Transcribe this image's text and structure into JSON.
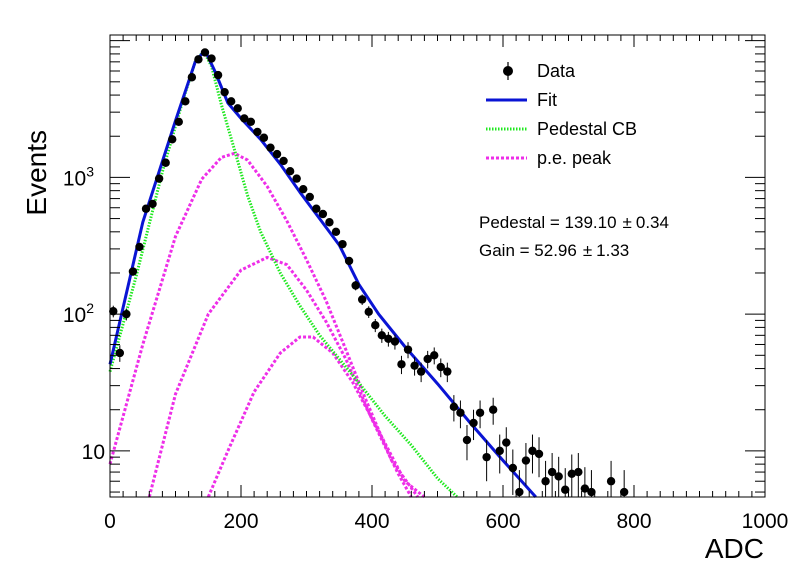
{
  "chart_data": {
    "type": "scatter",
    "xlabel": "ADC",
    "ylabel": "Events",
    "xlim": [
      0,
      1000
    ],
    "ylim": [
      4.6,
      11000
    ],
    "yscale": "log",
    "grid": false,
    "legend_placement": "top-right",
    "x_ticks": [
      {
        "value": 0,
        "label": "0"
      },
      {
        "value": 200,
        "label": "200"
      },
      {
        "value": 400,
        "label": "400"
      },
      {
        "value": 600,
        "label": "600"
      },
      {
        "value": 800,
        "label": "800"
      },
      {
        "value": 1000,
        "label": "1000"
      }
    ],
    "y_ticks": [
      {
        "value": 10,
        "base": "10",
        "exp": ""
      },
      {
        "value": 100,
        "base": "10",
        "exp": "2"
      },
      {
        "value": 1000,
        "base": "10",
        "exp": "3"
      }
    ],
    "legend": [
      {
        "label": "Data",
        "kind": "marker"
      },
      {
        "label": "Fit",
        "kind": "line-blue"
      },
      {
        "label": "Pedestal CB",
        "kind": "dotted-green"
      },
      {
        "label": "p.e. peak",
        "kind": "dotted-magenta"
      }
    ],
    "annotations": {
      "pedestal": "Pedestal = 139.10",
      "pedestal_err": "0.34",
      "gain": "Gain = 52.96",
      "gain_err": "1.33"
    },
    "pm_symbol": "±",
    "colors": {
      "data": "#000000",
      "fit": "#0a14d4",
      "pedestal": "#1ee81e",
      "pe_peak": "#ee2ee8"
    },
    "series": [
      {
        "name": "Data",
        "points": [
          [
            5,
            105
          ],
          [
            15,
            52
          ],
          [
            25,
            100
          ],
          [
            35,
            205
          ],
          [
            45,
            310
          ],
          [
            55,
            590
          ],
          [
            65,
            640
          ],
          [
            75,
            980
          ],
          [
            85,
            1280
          ],
          [
            95,
            1900
          ],
          [
            105,
            2550
          ],
          [
            115,
            3600
          ],
          [
            125,
            5400
          ],
          [
            135,
            7300
          ],
          [
            145,
            8200
          ],
          [
            155,
            7400
          ],
          [
            165,
            5600
          ],
          [
            175,
            4200
          ],
          [
            185,
            3600
          ],
          [
            195,
            3200
          ],
          [
            205,
            2700
          ],
          [
            215,
            2550
          ],
          [
            225,
            2150
          ],
          [
            235,
            1950
          ],
          [
            245,
            1650
          ],
          [
            255,
            1480
          ],
          [
            265,
            1320
          ],
          [
            275,
            1110
          ],
          [
            285,
            980
          ],
          [
            295,
            820
          ],
          [
            305,
            720
          ],
          [
            315,
            590
          ],
          [
            325,
            540
          ],
          [
            335,
            470
          ],
          [
            345,
            400
          ],
          [
            355,
            325
          ],
          [
            365,
            245
          ],
          [
            375,
            162
          ],
          [
            385,
            128
          ],
          [
            395,
            104
          ],
          [
            405,
            83
          ],
          [
            415,
            70
          ],
          [
            425,
            66
          ],
          [
            435,
            63
          ],
          [
            445,
            43
          ],
          [
            455,
            55
          ],
          [
            465,
            42
          ],
          [
            475,
            38
          ],
          [
            485,
            47
          ],
          [
            495,
            50
          ],
          [
            505,
            41
          ],
          [
            515,
            38
          ],
          [
            525,
            21
          ],
          [
            535,
            19
          ],
          [
            545,
            12
          ],
          [
            555,
            16
          ],
          [
            565,
            19
          ],
          [
            575,
            9
          ],
          [
            585,
            20
          ],
          [
            595,
            10
          ],
          [
            605,
            11.5
          ],
          [
            615,
            7.5
          ],
          [
            625,
            5
          ],
          [
            635,
            8.5
          ],
          [
            645,
            10
          ],
          [
            655,
            9.5
          ],
          [
            665,
            6
          ],
          [
            675,
            7
          ],
          [
            685,
            6.5
          ],
          [
            695,
            5.2
          ],
          [
            705,
            6.8
          ],
          [
            715,
            7
          ],
          [
            725,
            5.3
          ],
          [
            735,
            5
          ],
          [
            765,
            6
          ],
          [
            785,
            5
          ]
        ]
      },
      {
        "name": "Fit",
        "points": [
          [
            0,
            43
          ],
          [
            50,
            470
          ],
          [
            100,
            2600
          ],
          [
            130,
            7000
          ],
          [
            145,
            8500
          ],
          [
            160,
            6000
          ],
          [
            180,
            3500
          ],
          [
            200,
            2700
          ],
          [
            230,
            1900
          ],
          [
            260,
            1250
          ],
          [
            290,
            780
          ],
          [
            320,
            500
          ],
          [
            350,
            320
          ],
          [
            380,
            165
          ],
          [
            410,
            100
          ],
          [
            450,
            58
          ],
          [
            500,
            31
          ],
          [
            550,
            16
          ],
          [
            600,
            8.5
          ],
          [
            650,
            4.6
          ]
        ]
      },
      {
        "name": "Pedestal CB",
        "points": [
          [
            0,
            38
          ],
          [
            40,
            190
          ],
          [
            80,
            1100
          ],
          [
            110,
            3500
          ],
          [
            130,
            7000
          ],
          [
            143,
            8400
          ],
          [
            155,
            6500
          ],
          [
            170,
            3400
          ],
          [
            190,
            1600
          ],
          [
            210,
            740
          ],
          [
            230,
            400
          ],
          [
            260,
            200
          ],
          [
            290,
            115
          ],
          [
            320,
            70
          ],
          [
            370,
            36
          ],
          [
            420,
            18
          ],
          [
            460,
            11
          ],
          [
            500,
            6.3
          ],
          [
            530,
            4.6
          ]
        ]
      },
      {
        "name": "p.e. peak",
        "points": [
          [
            0,
            8
          ],
          [
            50,
            60
          ],
          [
            100,
            370
          ],
          [
            140,
            970
          ],
          [
            170,
            1400
          ],
          [
            190,
            1500
          ],
          [
            210,
            1340
          ],
          [
            240,
            860
          ],
          [
            270,
            480
          ],
          [
            300,
            250
          ],
          [
            330,
            125
          ],
          [
            360,
            55
          ],
          [
            390,
            24
          ],
          [
            430,
            8.5
          ],
          [
            470,
            4.6
          ]
        ]
      },
      {
        "name": "p.e. peak",
        "points": [
          [
            60,
            4.6
          ],
          [
            100,
            26
          ],
          [
            150,
            100
          ],
          [
            200,
            210
          ],
          [
            240,
            260
          ],
          [
            270,
            230
          ],
          [
            300,
            150
          ],
          [
            330,
            88
          ],
          [
            360,
            47
          ],
          [
            400,
            17
          ],
          [
            440,
            6.8
          ],
          [
            460,
            4.6
          ]
        ]
      },
      {
        "name": "p.e. peak",
        "points": [
          [
            150,
            4.6
          ],
          [
            180,
            10
          ],
          [
            220,
            27
          ],
          [
            260,
            52
          ],
          [
            290,
            68
          ],
          [
            310,
            68
          ],
          [
            340,
            52
          ],
          [
            370,
            32
          ],
          [
            410,
            14
          ],
          [
            450,
            6
          ],
          [
            480,
            4.6
          ]
        ]
      }
    ]
  }
}
